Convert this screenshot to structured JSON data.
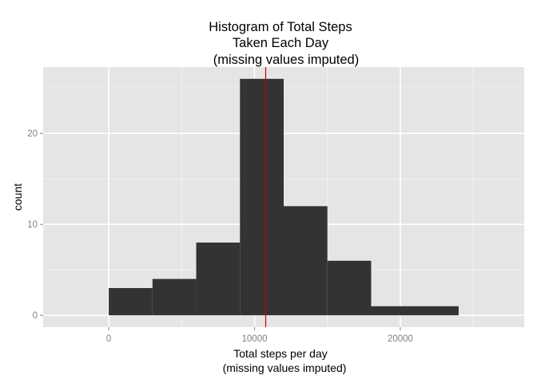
{
  "chart_data": {
    "type": "bar",
    "title_lines": [
      "Histogram of Total Steps",
      "Taken Each Day",
      "(missing values imputed)"
    ],
    "xlabel_lines": [
      "Total steps per day",
      "(missing values imputed)"
    ],
    "ylabel": "count",
    "bin_width": 3000,
    "bins": [
      {
        "start": 0,
        "end": 3000,
        "count": 3
      },
      {
        "start": 3000,
        "end": 6000,
        "count": 4
      },
      {
        "start": 6000,
        "end": 9000,
        "count": 8
      },
      {
        "start": 9000,
        "end": 12000,
        "count": 26
      },
      {
        "start": 12000,
        "end": 15000,
        "count": 12
      },
      {
        "start": 15000,
        "end": 18000,
        "count": 6
      },
      {
        "start": 18000,
        "end": 24000,
        "count": 1
      }
    ],
    "xlim": [
      -4500,
      28500
    ],
    "ylim": [
      -1.3,
      27.3
    ],
    "xticks": [
      0,
      10000,
      20000
    ],
    "xtick_labels": [
      "0",
      "10000",
      "20000"
    ],
    "yticks": [
      0,
      10,
      20
    ],
    "ytick_labels": [
      "0",
      "10",
      "20"
    ],
    "x_minor_gridlines": [
      -5000,
      5000,
      15000,
      25000
    ],
    "y_minor_gridlines": [
      5,
      15,
      25
    ],
    "vertical_line": {
      "x": 10766,
      "color": "#cc0000"
    },
    "grid": true,
    "colors": {
      "panel": "#e5e5e5",
      "grid": "#ffffff",
      "bar": "#333333",
      "tick_label": "#7f7f7f"
    }
  }
}
